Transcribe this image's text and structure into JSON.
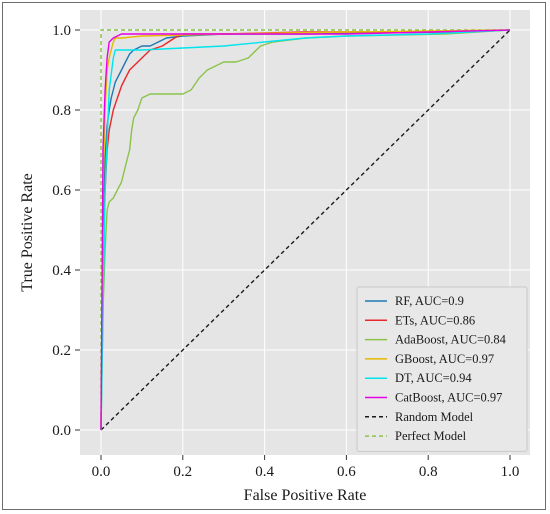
{
  "chart_data": {
    "type": "line",
    "xlabel": "False Positive Rate",
    "ylabel": "True Positive Rate",
    "xlim": [
      0.0,
      1.0
    ],
    "ylim": [
      0.0,
      1.0
    ],
    "xticks": [
      "0.0",
      "0.2",
      "0.4",
      "0.6",
      "0.8",
      "1.0"
    ],
    "yticks": [
      "0.0",
      "0.2",
      "0.4",
      "0.6",
      "0.8",
      "1.0"
    ],
    "grid": true,
    "background_color": "#e5e5e5",
    "legend_position": "lower-right",
    "series": [
      {
        "name": "RF, AUC=0.9",
        "color": "#1f77b4",
        "dash": "solid",
        "points": [
          [
            0,
            0
          ],
          [
            0.005,
            0.55
          ],
          [
            0.01,
            0.68
          ],
          [
            0.015,
            0.76
          ],
          [
            0.02,
            0.8
          ],
          [
            0.025,
            0.83
          ],
          [
            0.03,
            0.85
          ],
          [
            0.035,
            0.87
          ],
          [
            0.04,
            0.88
          ],
          [
            0.05,
            0.9
          ],
          [
            0.06,
            0.92
          ],
          [
            0.07,
            0.94
          ],
          [
            0.08,
            0.95
          ],
          [
            0.1,
            0.96
          ],
          [
            0.12,
            0.96
          ],
          [
            0.14,
            0.97
          ],
          [
            0.16,
            0.98
          ],
          [
            0.2,
            0.985
          ],
          [
            0.3,
            0.99
          ],
          [
            0.5,
            0.99
          ],
          [
            0.85,
            0.995
          ],
          [
            1.0,
            1.0
          ]
        ]
      },
      {
        "name": "ETs, AUC=0.86",
        "color": "#e8282b",
        "dash": "solid",
        "points": [
          [
            0,
            0
          ],
          [
            0.005,
            0.5
          ],
          [
            0.01,
            0.6
          ],
          [
            0.015,
            0.7
          ],
          [
            0.02,
            0.75
          ],
          [
            0.03,
            0.8
          ],
          [
            0.04,
            0.83
          ],
          [
            0.05,
            0.86
          ],
          [
            0.06,
            0.88
          ],
          [
            0.07,
            0.9
          ],
          [
            0.08,
            0.91
          ],
          [
            0.1,
            0.93
          ],
          [
            0.12,
            0.95
          ],
          [
            0.15,
            0.96
          ],
          [
            0.18,
            0.98
          ],
          [
            0.2,
            0.99
          ],
          [
            0.3,
            0.99
          ],
          [
            0.5,
            0.995
          ],
          [
            0.85,
            0.995
          ],
          [
            1.0,
            1.0
          ]
        ]
      },
      {
        "name": "AdaBoost, AUC=0.84",
        "color": "#8bc34a",
        "dash": "solid",
        "points": [
          [
            0,
            0
          ],
          [
            0.005,
            0.3
          ],
          [
            0.01,
            0.45
          ],
          [
            0.015,
            0.55
          ],
          [
            0.02,
            0.57
          ],
          [
            0.03,
            0.58
          ],
          [
            0.04,
            0.6
          ],
          [
            0.05,
            0.62
          ],
          [
            0.06,
            0.66
          ],
          [
            0.07,
            0.7
          ],
          [
            0.075,
            0.75
          ],
          [
            0.08,
            0.78
          ],
          [
            0.09,
            0.8
          ],
          [
            0.1,
            0.83
          ],
          [
            0.12,
            0.84
          ],
          [
            0.2,
            0.84
          ],
          [
            0.22,
            0.85
          ],
          [
            0.24,
            0.88
          ],
          [
            0.26,
            0.9
          ],
          [
            0.28,
            0.91
          ],
          [
            0.3,
            0.92
          ],
          [
            0.33,
            0.92
          ],
          [
            0.36,
            0.93
          ],
          [
            0.39,
            0.96
          ],
          [
            0.42,
            0.97
          ],
          [
            0.5,
            0.98
          ],
          [
            0.6,
            0.985
          ],
          [
            0.84,
            0.99
          ],
          [
            1.0,
            1.0
          ]
        ]
      },
      {
        "name": "GBoost, AUC=0.97",
        "color": "#e6b800",
        "dash": "solid",
        "points": [
          [
            0,
            0
          ],
          [
            0.005,
            0.6
          ],
          [
            0.01,
            0.8
          ],
          [
            0.015,
            0.9
          ],
          [
            0.02,
            0.93
          ],
          [
            0.025,
            0.95
          ],
          [
            0.03,
            0.97
          ],
          [
            0.035,
            0.98
          ],
          [
            0.05,
            0.98
          ],
          [
            0.1,
            0.985
          ],
          [
            0.3,
            0.99
          ],
          [
            0.6,
            0.995
          ],
          [
            1.0,
            1.0
          ]
        ]
      },
      {
        "name": "DT, AUC=0.94",
        "color": "#00e5ee",
        "dash": "solid",
        "points": [
          [
            0,
            0
          ],
          [
            0.01,
            0.6
          ],
          [
            0.02,
            0.85
          ],
          [
            0.03,
            0.93
          ],
          [
            0.035,
            0.95
          ],
          [
            0.1,
            0.95
          ],
          [
            0.2,
            0.955
          ],
          [
            0.3,
            0.96
          ],
          [
            0.4,
            0.97
          ],
          [
            0.5,
            0.98
          ],
          [
            0.6,
            0.985
          ],
          [
            0.8,
            0.99
          ],
          [
            1.0,
            1.0
          ]
        ]
      },
      {
        "name": "CatBoost, AUC=0.97",
        "color": "#e600e6",
        "dash": "solid",
        "points": [
          [
            0,
            0
          ],
          [
            0.005,
            0.7
          ],
          [
            0.01,
            0.85
          ],
          [
            0.015,
            0.93
          ],
          [
            0.02,
            0.97
          ],
          [
            0.03,
            0.98
          ],
          [
            0.05,
            0.99
          ],
          [
            0.1,
            0.99
          ],
          [
            0.2,
            0.99
          ],
          [
            0.4,
            0.99
          ],
          [
            0.6,
            0.99
          ],
          [
            0.8,
            0.995
          ],
          [
            1.0,
            1.0
          ]
        ]
      },
      {
        "name": "Random Model",
        "color": "#1a1a1a",
        "dash": "dashed",
        "points": [
          [
            0,
            0
          ],
          [
            1.0,
            1.0
          ]
        ]
      },
      {
        "name": "Perfect Model",
        "color": "#8bc34a",
        "dash": "dashed",
        "points": [
          [
            0,
            0
          ],
          [
            0,
            1.0
          ],
          [
            1.0,
            1.0
          ]
        ]
      }
    ]
  }
}
